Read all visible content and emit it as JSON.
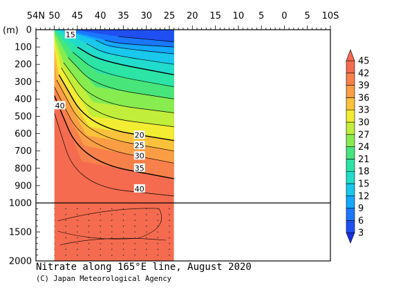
{
  "chart_data": {
    "type": "heatmap",
    "title": "Nitrate along 165°E line, August 2020",
    "credit": "(C) Japan Meteorological Agency",
    "ylabel": "(m)",
    "x_ticks": [
      {
        "lat": 54,
        "label": "54N"
      },
      {
        "lat": 50,
        "label": "50"
      },
      {
        "lat": 45,
        "label": "45"
      },
      {
        "lat": 40,
        "label": "40"
      },
      {
        "lat": 35,
        "label": "35"
      },
      {
        "lat": 30,
        "label": "30"
      },
      {
        "lat": 25,
        "label": "25"
      },
      {
        "lat": 20,
        "label": "20"
      },
      {
        "lat": 15,
        "label": "15"
      },
      {
        "lat": 10,
        "label": "10"
      },
      {
        "lat": 5,
        "label": "5"
      },
      {
        "lat": 0,
        "label": "0"
      },
      {
        "lat": -5,
        "label": "5"
      },
      {
        "lat": -10,
        "label": "10S"
      }
    ],
    "y_ticks_upper": [
      {
        "depth": 0,
        "label": "0"
      },
      {
        "depth": 100,
        "label": "100"
      },
      {
        "depth": 200,
        "label": "200"
      },
      {
        "depth": 300,
        "label": "300"
      },
      {
        "depth": 400,
        "label": "400"
      },
      {
        "depth": 500,
        "label": "500"
      },
      {
        "depth": 600,
        "label": "600"
      },
      {
        "depth": 700,
        "label": "700"
      },
      {
        "depth": 800,
        "label": "800"
      },
      {
        "depth": 900,
        "label": "900"
      },
      {
        "depth": 1000,
        "label": "1000"
      }
    ],
    "y_ticks_lower": [
      {
        "depth": 1500,
        "label": "1500"
      },
      {
        "depth": 2000,
        "label": "2000"
      }
    ],
    "xlim": [
      54,
      -10
    ],
    "ylim_upper": [
      0,
      1000
    ],
    "ylim_lower": [
      1000,
      2000
    ],
    "data_lat_range": [
      50,
      24
    ],
    "colorbar": {
      "ticks": [
        3,
        6,
        9,
        12,
        15,
        18,
        21,
        24,
        27,
        30,
        33,
        36,
        39,
        42,
        45
      ],
      "colors": [
        "#1f4ff0",
        "#1a78ff",
        "#14a8ff",
        "#19c8ec",
        "#21dccc",
        "#2be4a6",
        "#48e67a",
        "#86ec50",
        "#c1ee3b",
        "#f2ec32",
        "#f9c23a",
        "#fa9e45",
        "#f8804b",
        "#f46b4f"
      ]
    },
    "contour_labels": [
      {
        "value": "15",
        "lat": 46.5,
        "depth": 30
      },
      {
        "value": "40",
        "lat": 48.8,
        "depth": 440
      },
      {
        "value": "20",
        "lat": 31.5,
        "depth": 610
      },
      {
        "value": "25",
        "lat": 31.5,
        "depth": 670
      },
      {
        "value": "30",
        "lat": 31.5,
        "depth": 730
      },
      {
        "value": "35",
        "lat": 31.5,
        "depth": 800
      },
      {
        "value": "40",
        "lat": 31.5,
        "depth": 920
      }
    ],
    "nitrate_contours": [
      {
        "value": 3,
        "north": [
          [
            36,
            40
          ]
        ],
        "south": [
          [
            24,
            70
          ]
        ]
      },
      {
        "value": 6,
        "north": [
          [
            39,
            60
          ],
          [
            36,
            80
          ]
        ],
        "south": [
          [
            24,
            100
          ]
        ]
      },
      {
        "value": 9,
        "north": [
          [
            41,
            60
          ],
          [
            38,
            100
          ]
        ],
        "south": [
          [
            24,
            140
          ]
        ]
      },
      {
        "value": 12,
        "north": [
          [
            43,
            80
          ],
          [
            39,
            140
          ]
        ],
        "south": [
          [
            24,
            200
          ]
        ]
      },
      {
        "value": 15,
        "north": [
          [
            45,
            100
          ],
          [
            40,
            180
          ]
        ],
        "south": [
          [
            24,
            260
          ]
        ]
      },
      {
        "value": 18,
        "north": [
          [
            46,
            130
          ],
          [
            40.5,
            250
          ]
        ],
        "south": [
          [
            24,
            330
          ]
        ]
      },
      {
        "value": 21,
        "north": [
          [
            47,
            160
          ],
          [
            41,
            330
          ]
        ],
        "south": [
          [
            24,
            400
          ]
        ]
      },
      {
        "value": 24,
        "north": [
          [
            48,
            190
          ],
          [
            41.5,
            420
          ]
        ],
        "south": [
          [
            24,
            480
          ]
        ]
      },
      {
        "value": 27,
        "north": [
          [
            48.5,
            220
          ],
          [
            42,
            500
          ]
        ],
        "south": [
          [
            24,
            560
          ]
        ]
      },
      {
        "value": 30,
        "north": [
          [
            49,
            260
          ],
          [
            42.5,
            560
          ]
        ],
        "south": [
          [
            24,
            640
          ]
        ]
      },
      {
        "value": 33,
        "north": [
          [
            49.5,
            290
          ],
          [
            43,
            610
          ]
        ],
        "south": [
          [
            24,
            700
          ]
        ]
      },
      {
        "value": 36,
        "north": [
          [
            50,
            330
          ],
          [
            43.5,
            670
          ]
        ],
        "south": [
          [
            24,
            770
          ]
        ]
      },
      {
        "value": 39,
        "north": [
          [
            50,
            380
          ],
          [
            44,
            760
          ]
        ],
        "south": [
          [
            24,
            860
          ]
        ]
      },
      {
        "value": 42,
        "north": [
          [
            50,
            480
          ],
          [
            45,
            900
          ]
        ],
        "south": [
          [
            24,
            960
          ]
        ]
      }
    ]
  }
}
